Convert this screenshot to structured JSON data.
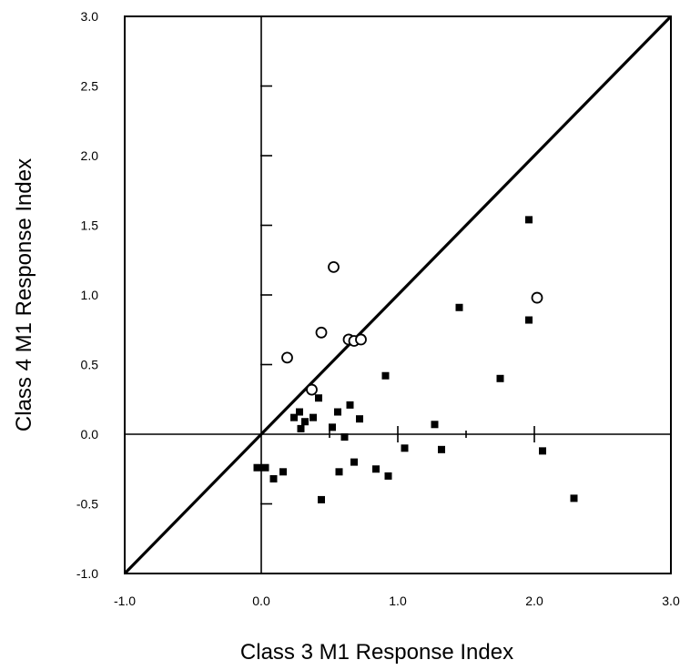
{
  "chart_data": {
    "type": "scatter",
    "title": "",
    "xlabel": "Class 3 M1 Response Index",
    "ylabel": "Class 4 M1 Response Index",
    "xlim": [
      -1.0,
      3.0
    ],
    "ylim": [
      -1.0,
      3.0
    ],
    "x_tick_values": [
      -1.0,
      0.0,
      1.0,
      2.0,
      3.0
    ],
    "x_tick_labels": [
      "-1.0",
      "0.0",
      "1.0",
      "2.0",
      "3.0"
    ],
    "y_tick_values": [
      3.0,
      2.5,
      2.0,
      1.5,
      1.0,
      0.5,
      0.0,
      -0.5,
      -1.0
    ],
    "y_tick_labels": [
      "3.0",
      "2.5",
      "2.0",
      "1.5",
      "1.0",
      "0.5",
      "0.0",
      "-0.5",
      "-1.0"
    ],
    "grid": false,
    "reference_lines": [
      {
        "kind": "identity",
        "from": [
          -1.0,
          -1.0
        ],
        "to": [
          3.0,
          3.0
        ]
      },
      {
        "kind": "vertical",
        "x": 0.0
      },
      {
        "kind": "horizontal",
        "y": 0.0
      }
    ],
    "series": [
      {
        "marker": "open-circle",
        "color": "#000000",
        "points": [
          [
            0.19,
            0.55
          ],
          [
            0.37,
            0.32
          ],
          [
            0.44,
            0.73
          ],
          [
            0.53,
            1.2
          ],
          [
            0.64,
            0.68
          ],
          [
            0.68,
            0.67
          ],
          [
            0.73,
            0.68
          ],
          [
            2.02,
            0.98
          ]
        ]
      },
      {
        "marker": "filled-square",
        "color": "#000000",
        "points": [
          [
            -0.03,
            -0.24
          ],
          [
            0.03,
            -0.24
          ],
          [
            0.09,
            -0.32
          ],
          [
            0.16,
            -0.27
          ],
          [
            0.24,
            0.12
          ],
          [
            0.28,
            0.16
          ],
          [
            0.29,
            0.04
          ],
          [
            0.32,
            0.09
          ],
          [
            0.38,
            0.12
          ],
          [
            0.42,
            0.26
          ],
          [
            0.44,
            -0.47
          ],
          [
            0.52,
            0.05
          ],
          [
            0.56,
            0.16
          ],
          [
            0.57,
            -0.27
          ],
          [
            0.61,
            -0.02
          ],
          [
            0.65,
            0.21
          ],
          [
            0.68,
            -0.2
          ],
          [
            0.72,
            0.11
          ],
          [
            0.84,
            -0.25
          ],
          [
            0.91,
            0.42
          ],
          [
            0.93,
            -0.3
          ],
          [
            1.05,
            -0.1
          ],
          [
            1.27,
            0.07
          ],
          [
            1.32,
            -0.11
          ],
          [
            1.45,
            0.91
          ],
          [
            1.75,
            0.4
          ],
          [
            1.96,
            0.82
          ],
          [
            1.96,
            1.54
          ],
          [
            2.06,
            -0.12
          ],
          [
            2.29,
            -0.46
          ]
        ]
      }
    ]
  }
}
